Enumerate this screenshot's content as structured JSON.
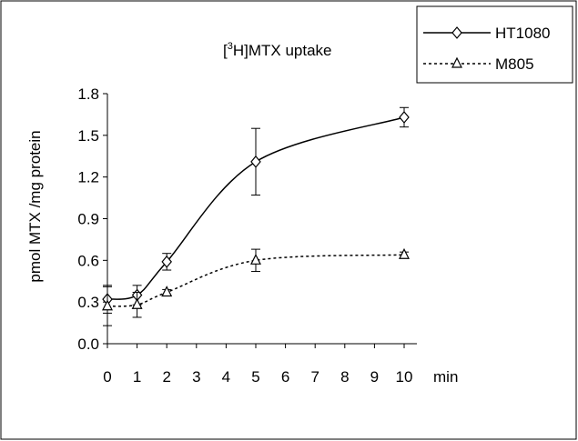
{
  "chart_data": {
    "type": "line",
    "title_prefix": "[",
    "title_sup": "3",
    "title_rest": "H]MTX uptake",
    "ylabel": "pmol MTX /mg protein",
    "x_unit_label": "min",
    "x": [
      0,
      1,
      2,
      5,
      10
    ],
    "x_ticks": [
      "0",
      "1",
      "2",
      "3",
      "4",
      "5",
      "6",
      "7",
      "8",
      "9",
      "10"
    ],
    "y_ticks": [
      "0.0",
      "0.3",
      "0.6",
      "0.9",
      "1.2",
      "1.5",
      "1.8"
    ],
    "ylim": [
      0,
      1.8
    ],
    "grid": false,
    "legend_position": "top-right",
    "series": [
      {
        "name": "HT1080",
        "marker": "diamond",
        "line_style": "solid",
        "values": [
          0.32,
          0.35,
          0.59,
          1.31,
          1.63
        ],
        "error": [
          0.1,
          0.07,
          0.06,
          0.24,
          0.07
        ]
      },
      {
        "name": "M805",
        "marker": "triangle",
        "line_style": "dashed",
        "values": [
          0.27,
          0.28,
          0.37,
          0.6,
          0.64
        ],
        "error": [
          0.14,
          0.09,
          0.02,
          0.08,
          0.02
        ]
      }
    ]
  }
}
